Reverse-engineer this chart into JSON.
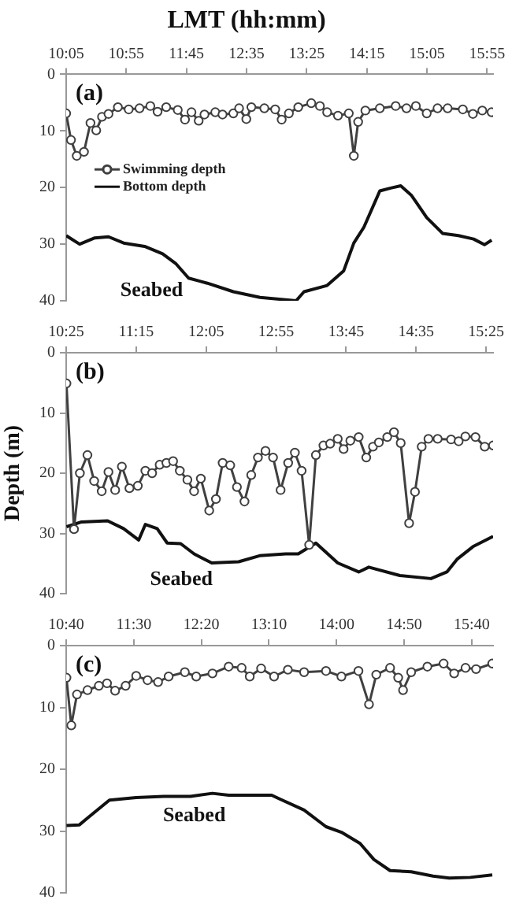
{
  "chart_data": [
    {
      "type": "line",
      "title": "LMT (hh:mm)",
      "annotations": [
        "(a)",
        "Seabed"
      ],
      "legend": "left",
      "xlim": [
        10.0833,
        16
      ],
      "xticks": [
        {
          "value": 10.0833,
          "label": "10:05"
        },
        {
          "value": 10.9167,
          "label": "10:55"
        },
        {
          "value": 11.75,
          "label": "11:45"
        },
        {
          "value": 12.5833,
          "label": "12:35"
        },
        {
          "value": 13.4167,
          "label": "13:25"
        },
        {
          "value": 14.25,
          "label": "14:15"
        },
        {
          "value": 15.0833,
          "label": "15:05"
        },
        {
          "value": 15.9167,
          "label": "15:55"
        }
      ],
      "ylim": [
        40,
        0
      ],
      "yticks": [
        0,
        10,
        20,
        30,
        40
      ],
      "series": [
        {
          "name": "Swimming depth",
          "color": "#404040",
          "marker": "circle",
          "x": [
            10.0833,
            10.15,
            10.23,
            10.33,
            10.42,
            10.5,
            10.58,
            10.67,
            10.8,
            10.95,
            11.1,
            11.25,
            11.35,
            11.47,
            11.63,
            11.73,
            11.82,
            11.92,
            12.0,
            12.15,
            12.25,
            12.4,
            12.48,
            12.58,
            12.65,
            12.83,
            12.98,
            13.07,
            13.17,
            13.3,
            13.48,
            13.6,
            13.7,
            13.85,
            14.0,
            14.07,
            14.13,
            14.23,
            14.43,
            14.65,
            14.8,
            14.93,
            15.08,
            15.23,
            15.37,
            15.58,
            15.72,
            15.85,
            15.98
          ],
          "values": [
            6.9,
            11.6,
            14.4,
            13.7,
            8.6,
            9.9,
            7.5,
            7.0,
            5.8,
            6.2,
            6.0,
            5.6,
            6.6,
            5.8,
            6.3,
            8.0,
            6.7,
            8.2,
            7.1,
            6.7,
            7.1,
            6.9,
            6.0,
            7.9,
            5.8,
            6.0,
            6.2,
            8.0,
            6.9,
            5.8,
            5.1,
            5.6,
            6.7,
            7.3,
            6.9,
            14.4,
            8.4,
            6.4,
            6.0,
            5.6,
            6.0,
            5.6,
            6.9,
            6.0,
            6.0,
            6.2,
            7.0,
            6.4,
            6.7
          ]
        },
        {
          "name": "Bottom depth",
          "color": "#111111",
          "marker": "none",
          "x": [
            10.0833,
            10.27,
            10.48,
            10.67,
            10.88,
            11.17,
            11.42,
            11.6,
            11.78,
            12.04,
            12.4,
            12.77,
            13.27,
            13.38,
            13.7,
            13.93,
            14.07,
            14.21,
            14.43,
            14.58,
            14.72,
            14.87,
            15.08,
            15.3,
            15.52,
            15.73,
            15.88,
            15.98
          ],
          "values": [
            28.5,
            30,
            28.9,
            28.7,
            29.8,
            30.4,
            31.7,
            33.4,
            36,
            36.9,
            38.4,
            39.4,
            40,
            38.4,
            37.3,
            34.7,
            29.8,
            27,
            20.6,
            20.1,
            19.7,
            21.4,
            25.3,
            28.1,
            28.5,
            29.1,
            30.1,
            29.3
          ]
        }
      ]
    },
    {
      "type": "line",
      "ylabel": "Depth (m)",
      "annotations": [
        "(b)",
        "Seabed"
      ],
      "xlim": [
        10.4167,
        15.5
      ],
      "xticks": [
        {
          "value": 10.4167,
          "label": "10:25"
        },
        {
          "value": 11.25,
          "label": "11:15"
        },
        {
          "value": 12.0833,
          "label": "12:05"
        },
        {
          "value": 12.9167,
          "label": "12:55"
        },
        {
          "value": 13.75,
          "label": "13:45"
        },
        {
          "value": 14.5833,
          "label": "14:35"
        },
        {
          "value": 15.4167,
          "label": "15:25"
        }
      ],
      "ylim": [
        40,
        0
      ],
      "yticks": [
        0,
        10,
        20,
        30,
        40
      ],
      "series": [
        {
          "color": "#404040",
          "marker": "circle",
          "x": [
            10.42,
            10.51,
            10.58,
            10.67,
            10.75,
            10.84,
            10.92,
            11.0,
            11.08,
            11.17,
            11.27,
            11.36,
            11.44,
            11.53,
            11.61,
            11.69,
            11.77,
            11.86,
            11.94,
            12.02,
            12.12,
            12.2,
            12.28,
            12.37,
            12.45,
            12.54,
            12.62,
            12.7,
            12.79,
            12.88,
            12.97,
            13.06,
            13.14,
            13.22,
            13.31,
            13.39,
            13.48,
            13.56,
            13.65,
            13.72,
            13.8,
            13.9,
            13.99,
            14.07,
            14.14,
            14.24,
            14.32,
            14.4,
            14.5,
            14.57,
            14.65,
            14.73,
            14.84,
            15.0,
            15.09,
            15.17,
            15.29,
            15.4,
            15.5
          ],
          "values": [
            5.1,
            29.3,
            20,
            17,
            21.3,
            23,
            19.8,
            22.8,
            18.9,
            22.5,
            22.1,
            19.6,
            20,
            18.6,
            18.3,
            18,
            19.6,
            21.1,
            23,
            20.9,
            26.2,
            24.3,
            18.3,
            18.7,
            22.3,
            24.7,
            20.3,
            17.4,
            16.3,
            17.4,
            22.8,
            18.3,
            16.6,
            19.6,
            31.9,
            17,
            15.4,
            15.1,
            14.3,
            16,
            14.6,
            14,
            17.4,
            15.6,
            14.9,
            14,
            13.2,
            15,
            28.3,
            23.1,
            15.6,
            14.3,
            14.3,
            14.4,
            14.7,
            13.9,
            14,
            15.6,
            15.4
          ]
        },
        {
          "color": "#111111",
          "marker": "none",
          "x": [
            10.42,
            10.6,
            10.91,
            11.1,
            11.28,
            11.36,
            11.5,
            11.62,
            11.78,
            11.94,
            12.15,
            12.47,
            12.72,
            13.03,
            13.18,
            13.39,
            13.65,
            13.9,
            14.02,
            14.39,
            14.76,
            14.95,
            15.07,
            15.26,
            15.5
          ],
          "values": [
            28.9,
            28.1,
            27.9,
            29.2,
            31.1,
            28.5,
            29.2,
            31.6,
            31.7,
            33.4,
            34.9,
            34.7,
            33.7,
            33.4,
            33.4,
            31.6,
            34.9,
            36.4,
            35.6,
            37,
            37.5,
            36.4,
            34.3,
            32.2,
            30.5
          ]
        }
      ]
    },
    {
      "type": "line",
      "annotations": [
        "(c)",
        "Seabed"
      ],
      "xlim": [
        10.6667,
        15.93
      ],
      "xticks": [
        {
          "value": 10.6667,
          "label": "10:40"
        },
        {
          "value": 11.5,
          "label": "11:30"
        },
        {
          "value": 12.3333,
          "label": "12:20"
        },
        {
          "value": 13.1667,
          "label": "13:10"
        },
        {
          "value": 14,
          "label": "14:00"
        },
        {
          "value": 14.8333,
          "label": "14:50"
        },
        {
          "value": 15.6667,
          "label": "15:40"
        }
      ],
      "ylim": [
        40,
        0
      ],
      "yticks": [
        0,
        10,
        20,
        30,
        40
      ],
      "series": [
        {
          "color": "#404040",
          "marker": "circle",
          "x": [
            10.67,
            10.73,
            10.8,
            10.93,
            11.07,
            11.17,
            11.27,
            11.4,
            11.53,
            11.67,
            11.8,
            11.93,
            12.13,
            12.27,
            12.47,
            12.67,
            12.83,
            12.93,
            13.07,
            13.23,
            13.4,
            13.6,
            13.87,
            14.06,
            14.27,
            14.4,
            14.49,
            14.66,
            14.76,
            14.82,
            14.92,
            15.12,
            15.32,
            15.45,
            15.59,
            15.72,
            15.92
          ],
          "values": [
            5.2,
            12.9,
            7.9,
            7.2,
            6.5,
            6.1,
            7.3,
            6.5,
            4.9,
            5.6,
            5.9,
            5,
            4.3,
            5,
            4.5,
            3.4,
            3.6,
            5,
            3.7,
            5,
            3.9,
            4.3,
            4.1,
            5,
            4.1,
            9.5,
            4.7,
            3.6,
            5.2,
            7.2,
            4.3,
            3.4,
            2.9,
            4.5,
            3.6,
            3.8,
            2.9
          ]
        },
        {
          "color": "#111111",
          "marker": "none",
          "x": [
            10.67,
            10.83,
            10.93,
            11.2,
            11.53,
            11.87,
            12.2,
            12.47,
            12.67,
            13.07,
            13.2,
            13.33,
            13.6,
            13.87,
            14.06,
            14.29,
            14.46,
            14.66,
            14.92,
            15.19,
            15.39,
            15.65,
            15.92
          ],
          "values": [
            29.1,
            29,
            27.9,
            25,
            24.6,
            24.4,
            24.4,
            23.9,
            24.2,
            24.2,
            24.2,
            25,
            26.6,
            29.3,
            30.2,
            32,
            34.6,
            36.4,
            36.6,
            37.3,
            37.6,
            37.5,
            37.1
          ]
        }
      ]
    }
  ]
}
